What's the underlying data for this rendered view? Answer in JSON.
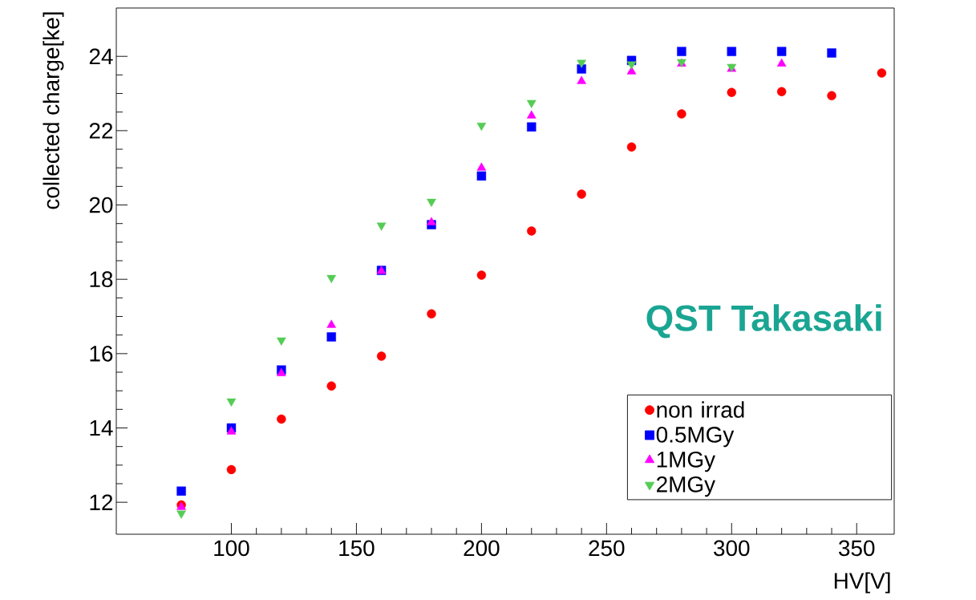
{
  "chart_data": {
    "type": "scatter",
    "xlabel": "HV[V]",
    "ylabel": "collected charge[ke]",
    "x": [
      80,
      100,
      120,
      140,
      160,
      180,
      200,
      220,
      240,
      260,
      280,
      300,
      320,
      340,
      360
    ],
    "series": [
      {
        "name": "non irrad",
        "color": "#ff0000",
        "marker": "circle",
        "values": [
          11.93,
          12.88,
          14.24,
          15.13,
          15.93,
          17.07,
          18.11,
          19.3,
          20.29,
          21.56,
          22.45,
          23.03,
          23.05,
          22.94,
          23.55
        ]
      },
      {
        "name": "0.5MGy",
        "color": "#0000ff",
        "marker": "square",
        "values": [
          12.3,
          14.0,
          15.56,
          16.45,
          18.24,
          19.47,
          20.78,
          22.1,
          23.66,
          23.89,
          24.13,
          24.13,
          24.13,
          24.09,
          null
        ]
      },
      {
        "name": "1MGy",
        "color": "#ff00ff",
        "marker": "triangle",
        "values": [
          11.87,
          13.9,
          15.47,
          16.77,
          18.22,
          19.53,
          21.0,
          22.4,
          23.33,
          23.59,
          23.8,
          23.66,
          23.8,
          null,
          null
        ]
      },
      {
        "name": "2MGy",
        "color": "#55cc55",
        "marker": "triangle-down",
        "values": [
          11.7,
          14.72,
          16.36,
          18.04,
          19.45,
          20.09,
          22.14,
          22.75,
          23.83,
          23.79,
          23.85,
          23.72,
          null,
          null,
          null
        ]
      }
    ],
    "xlim": [
      54,
      365
    ],
    "ylim": [
      11.14,
      25.3
    ],
    "xticks": [
      100,
      150,
      200,
      250,
      300,
      350
    ],
    "yticks": [
      12,
      14,
      16,
      18,
      20,
      22,
      24
    ],
    "grid": false,
    "legend": "bottom right",
    "annotations": [
      "QST Takasaki"
    ]
  }
}
